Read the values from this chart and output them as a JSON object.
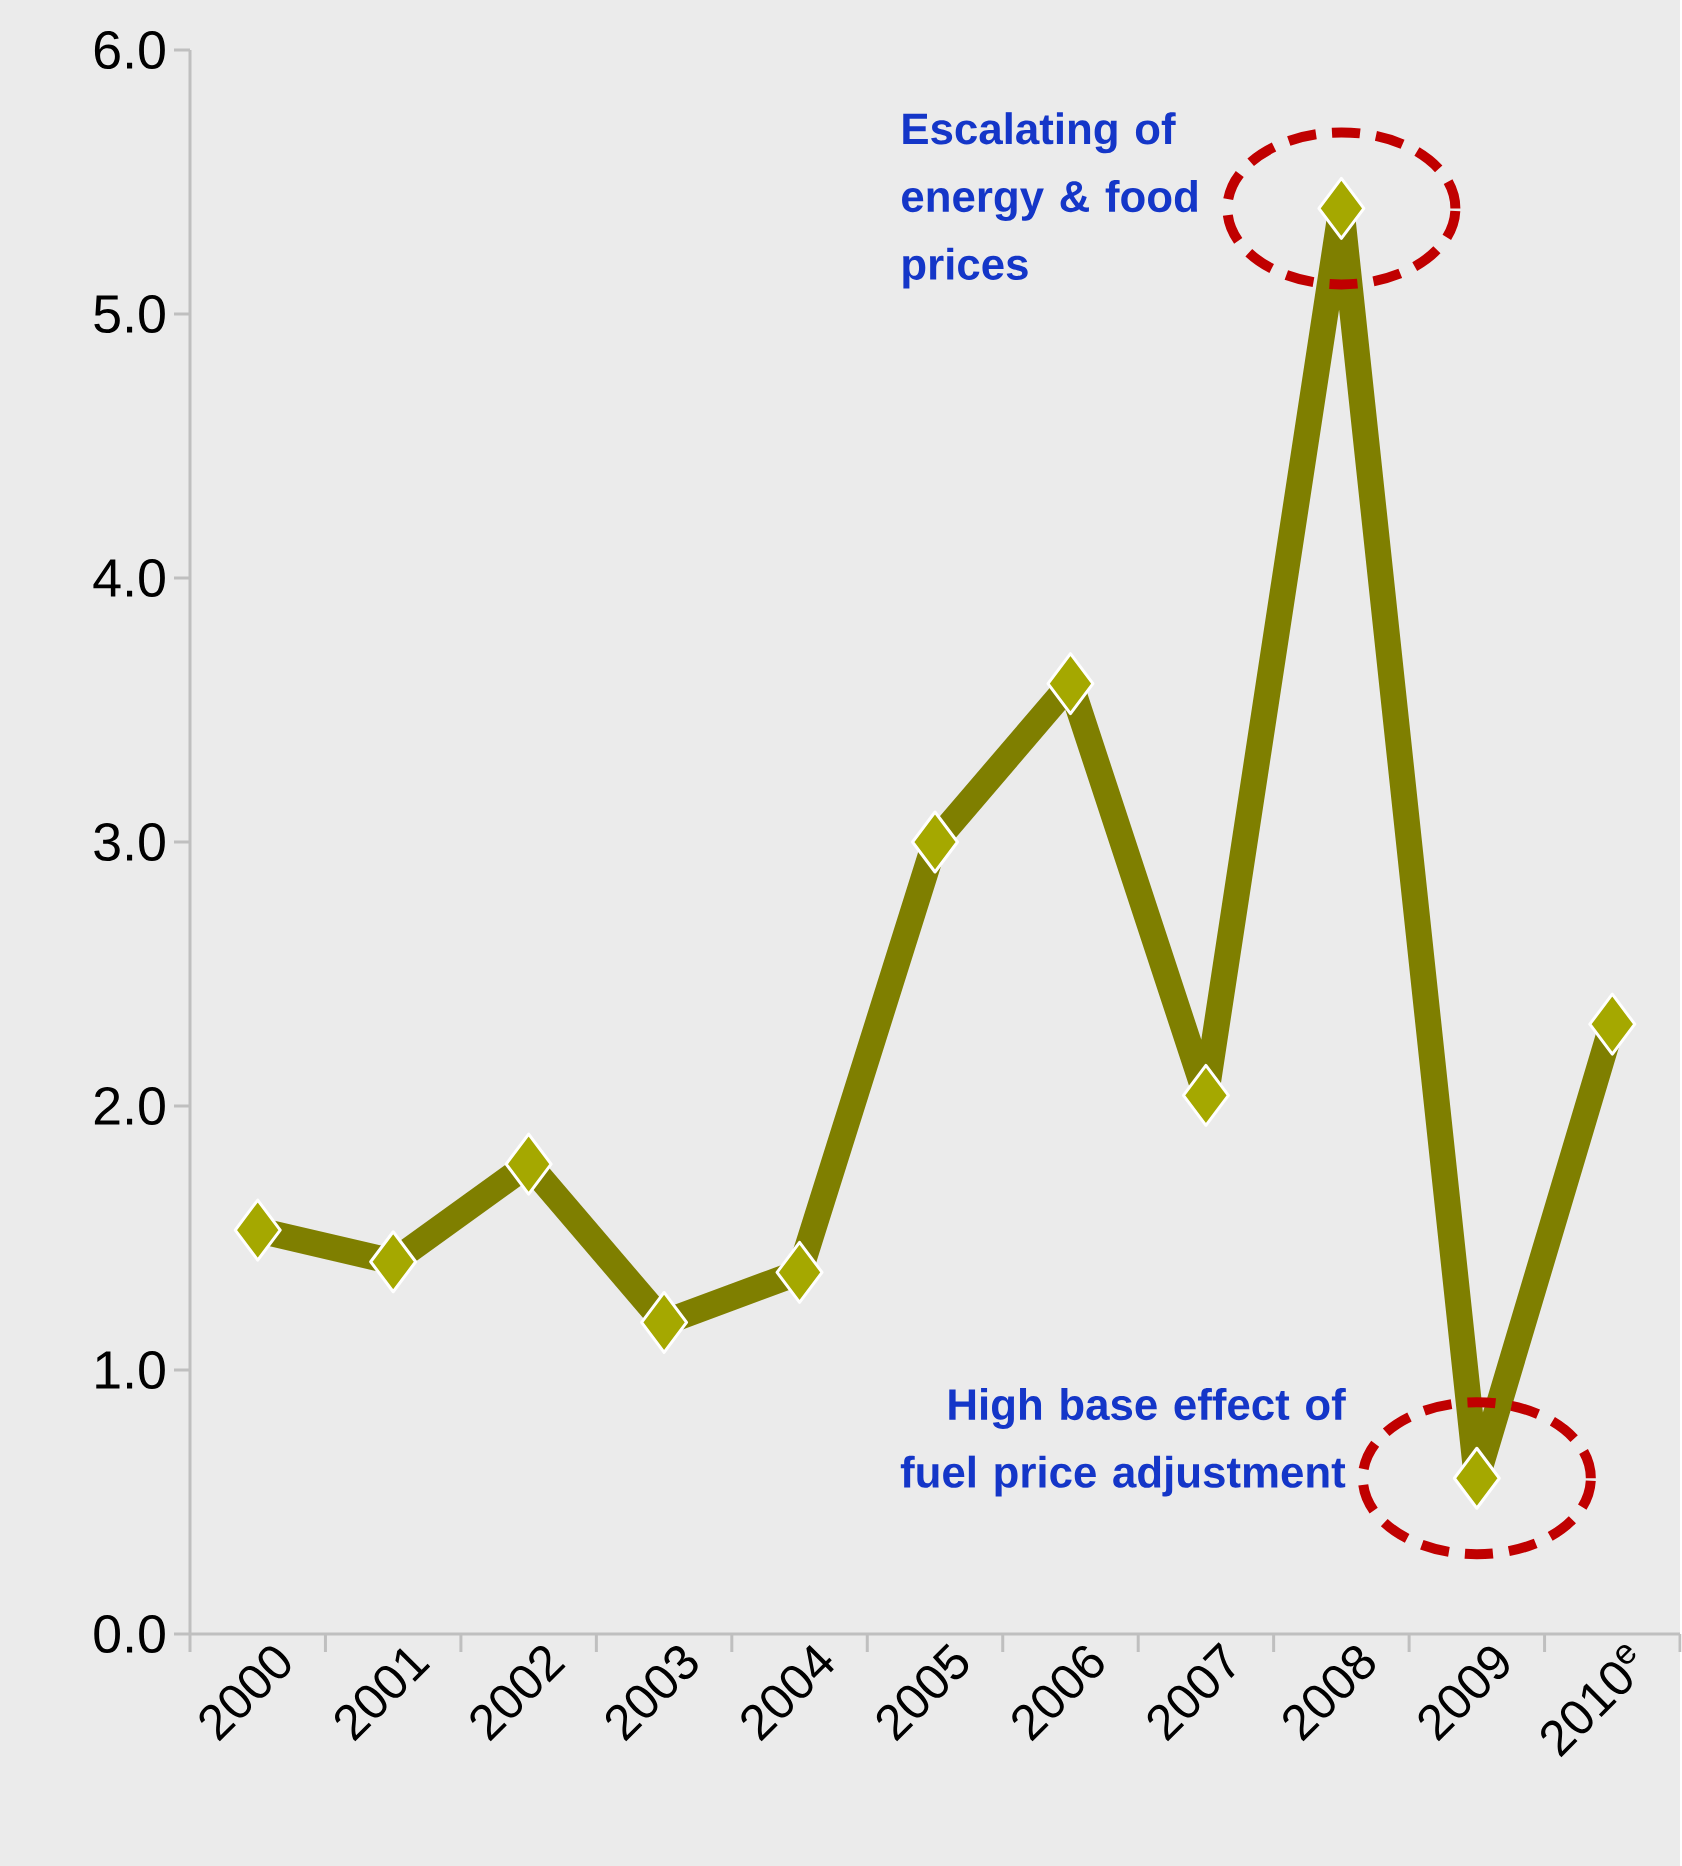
{
  "chart_data": {
    "type": "line",
    "categories": [
      "2000",
      "2001",
      "2002",
      "2003",
      "2004",
      "2005",
      "2006",
      "2007",
      "2008",
      "2009",
      "2010$^{e}$"
    ],
    "series": [
      {
        "color": "#7f7f00",
        "values": [
          1.53,
          1.41,
          1.78,
          1.18,
          1.37,
          3.0,
          3.6,
          2.04,
          5.4,
          0.59,
          2.31
        ]
      }
    ],
    "marker": "diamond",
    "ylim": [
      0,
      6
    ],
    "yticks": [
      {
        "value": 0,
        "label": "0.0"
      },
      {
        "value": 1,
        "label": "1.0"
      },
      {
        "value": 2,
        "label": "2.0"
      },
      {
        "value": 3,
        "label": "3.0"
      },
      {
        "value": 4,
        "label": "4.0"
      },
      {
        "value": 5,
        "label": "5.0"
      },
      {
        "value": 6,
        "label": "6.0"
      }
    ],
    "grid": false,
    "annotations": [
      {
        "text": "Escalating  of energy  & food prices",
        "x": "2008",
        "y": 5.4
      },
      {
        "text": "High base effect of fuel price adjustment",
        "x": "2009",
        "y": 0.59
      }
    ]
  }
}
